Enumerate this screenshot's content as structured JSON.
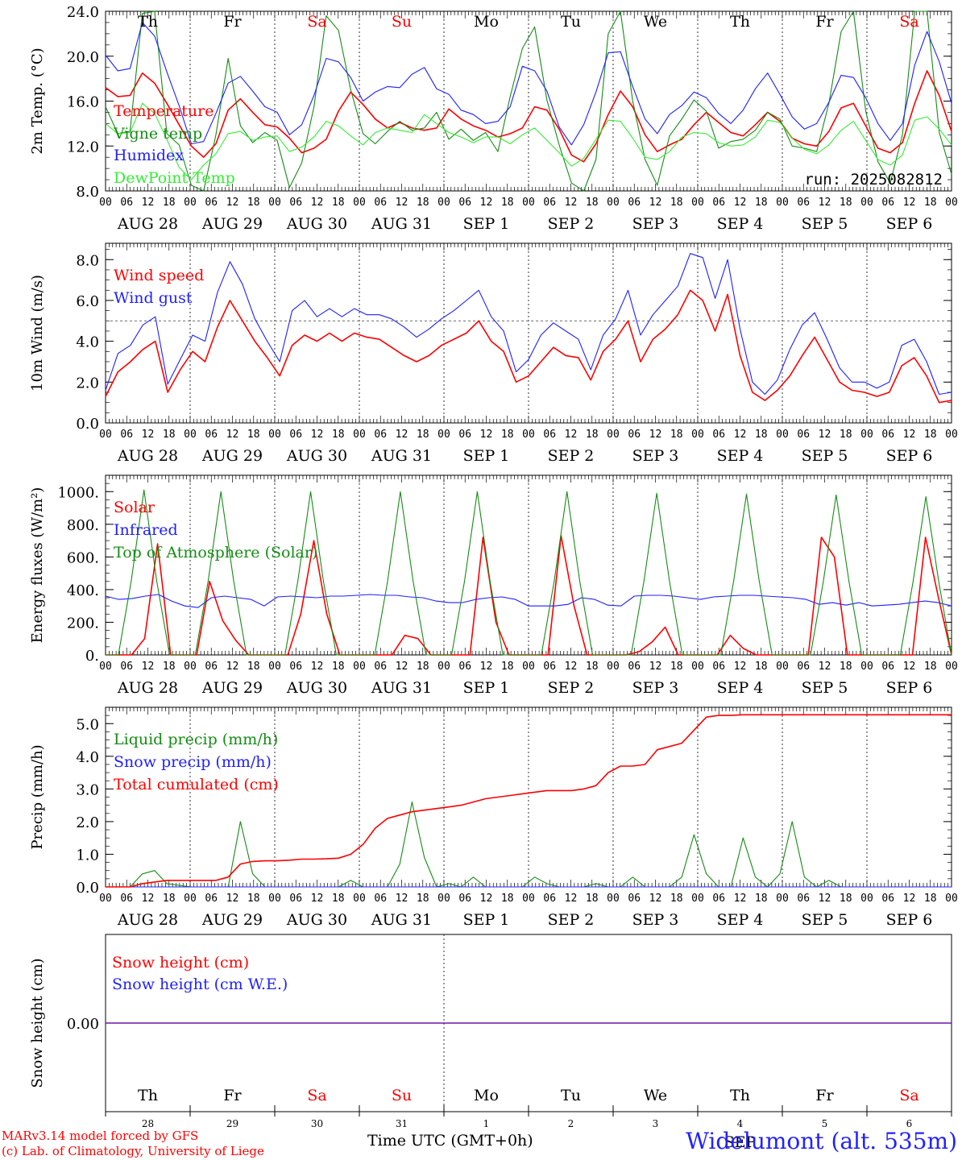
{
  "meteogram": {
    "run_label": "run: 2025082812",
    "station": "Widelumont (alt. 535m)",
    "footer_x_title": "Time UTC (GMT+0h)",
    "footer_month": "SEP",
    "credit_line_1": "MARv3.14 model forced by GFS",
    "credit_line_2": "(c) Lab. of Climatology, University of Liege",
    "weekdays": [
      "Th",
      "Fr",
      "Sa",
      "Su",
      "Mo",
      "Tu",
      "We",
      "Th",
      "Fr",
      "Sa"
    ],
    "weekday_weekend": [
      false,
      false,
      true,
      true,
      false,
      false,
      false,
      false,
      false,
      true
    ],
    "date_labels": [
      "AUG 28",
      "AUG 29",
      "AUG 30",
      "AUG 31",
      "SEP  1",
      "SEP  2",
      "SEP  3",
      "SEP  4",
      "SEP  5",
      "SEP  6"
    ],
    "day_numbers": [
      "28",
      "29",
      "30",
      "31",
      "1",
      "2",
      "3",
      "4",
      "5",
      "6"
    ],
    "hour_ticks": [
      "00",
      "06",
      "12",
      "18"
    ],
    "colors": {
      "red": "#ff0000",
      "blue": "#1f1fff",
      "green": "#148c14",
      "lightgreen": "#33ee33",
      "weekend": "#ff0000"
    }
  },
  "chart_data": [
    {
      "type": "line",
      "ylabel": "2m Temp. (°C)",
      "ylim": [
        8,
        24
      ],
      "yticks": [
        "8.0",
        "12.0",
        "16.0",
        "20.0",
        "24.0"
      ],
      "x_unit": "hours since 2025-08-28 00 UTC (3-hourly)",
      "series": [
        {
          "name": "Temperature",
          "color": "red",
          "values": [
            17.2,
            16.4,
            16.5,
            18.5,
            17.6,
            15.8,
            13.9,
            12.0,
            11.0,
            12.2,
            15.2,
            16.2,
            15.0,
            13.9,
            13.7,
            12.7,
            11.4,
            11.8,
            12.6,
            15.1,
            16.8,
            15.7,
            14.4,
            13.6,
            14.1,
            13.6,
            13.4,
            13.6,
            15.3,
            14.4,
            13.8,
            13.4,
            12.8,
            13.1,
            13.6,
            15.5,
            15.2,
            13.5,
            11.2,
            10.6,
            12.2,
            14.8,
            16.9,
            15.5,
            13.0,
            11.5,
            12.1,
            12.6,
            13.9,
            15.0,
            14.1,
            13.2,
            12.9,
            13.9,
            15.0,
            14.2,
            12.7,
            12.2,
            12.0,
            13.3,
            15.4,
            15.8,
            13.8,
            11.8,
            11.4,
            12.3,
            15.8,
            18.7,
            16.5,
            13.3
          ]
        },
        {
          "name": "Vigne temp",
          "color": "green",
          "values": [
            15.5,
            13.1,
            13.3,
            23.8,
            24.0,
            13.1,
            12.1,
            8.5,
            7.9,
            13.0,
            19.8,
            13.8,
            12.3,
            13.2,
            12.5,
            8.3,
            10.5,
            15.5,
            23.6,
            22.3,
            17.0,
            13.1,
            12.2,
            13.3,
            14.2,
            13.4,
            13.6,
            15.0,
            12.6,
            13.5,
            12.5,
            13.2,
            11.5,
            16.4,
            20.7,
            22.6,
            16.1,
            12.1,
            8.7,
            7.4,
            10.8,
            22.0,
            24.0,
            16.0,
            10.8,
            8.5,
            12.9,
            14.4,
            16.1,
            15.1,
            11.8,
            12.4,
            12.6,
            13.4,
            15.0,
            14.4,
            12.0,
            11.8,
            11.5,
            15.8,
            22.2,
            24.0,
            15.1,
            10.6,
            8.7,
            13.0,
            24.0,
            24.0,
            13.2,
            9.5
          ]
        },
        {
          "name": "Humidex",
          "color": "blue",
          "values": [
            20.1,
            18.7,
            18.9,
            23.0,
            21.8,
            18.6,
            15.6,
            12.2,
            12.4,
            14.9,
            17.6,
            18.2,
            16.9,
            15.5,
            15.0,
            13.0,
            13.9,
            16.5,
            19.8,
            19.5,
            18.1,
            16.0,
            16.8,
            17.3,
            17.2,
            18.4,
            19.0,
            17.1,
            16.6,
            15.2,
            14.8,
            14.0,
            14.2,
            15.5,
            19.1,
            18.7,
            16.9,
            13.7,
            12.1,
            13.9,
            16.8,
            20.3,
            20.4,
            17.3,
            14.4,
            13.1,
            14.8,
            15.6,
            16.8,
            16.3,
            14.9,
            14.0,
            15.2,
            17.1,
            18.5,
            16.6,
            14.6,
            13.5,
            14.0,
            15.9,
            18.3,
            18.1,
            16.3,
            14.0,
            12.5,
            14.0,
            19.2,
            22.2,
            19.5,
            15.8
          ]
        },
        {
          "name": "DewPoint Temp",
          "color": "lightgreen",
          "values": [
            14.0,
            13.1,
            13.2,
            15.8,
            14.9,
            12.6,
            10.1,
            9.0,
            10.3,
            11.3,
            13.1,
            13.3,
            12.5,
            12.8,
            12.9,
            11.5,
            11.9,
            12.8,
            14.2,
            13.8,
            12.9,
            12.1,
            13.2,
            13.6,
            13.4,
            13.2,
            14.8,
            14.0,
            13.2,
            12.8,
            12.3,
            12.8,
            12.8,
            12.2,
            13.0,
            13.6,
            12.5,
            11.4,
            10.2,
            10.9,
            12.6,
            14.3,
            14.2,
            12.7,
            11.0,
            10.8,
            11.5,
            12.8,
            13.2,
            13.1,
            12.3,
            12.0,
            12.1,
            12.8,
            14.3,
            14.1,
            12.7,
            11.7,
            11.3,
            12.1,
            13.4,
            14.2,
            12.5,
            10.8,
            10.3,
            11.2,
            14.3,
            14.6,
            13.5,
            12.1
          ]
        }
      ]
    },
    {
      "type": "line",
      "ylabel": "10m Wind (m/s)",
      "ylim": [
        0,
        8.8
      ],
      "yticks": [
        "0.0",
        "2.0",
        "4.0",
        "6.0",
        "8.0"
      ],
      "reference_line": 5.0,
      "series": [
        {
          "name": "Wind speed",
          "color": "red",
          "values": [
            1.3,
            2.5,
            3.0,
            3.6,
            4.0,
            1.5,
            2.6,
            3.5,
            3.0,
            4.7,
            6.0,
            5.0,
            4.0,
            3.2,
            2.3,
            3.8,
            4.3,
            4.0,
            4.4,
            4.0,
            4.4,
            4.2,
            4.1,
            3.7,
            3.3,
            3.0,
            3.3,
            3.8,
            4.1,
            4.4,
            5.0,
            4.0,
            3.5,
            2.0,
            2.3,
            3.0,
            3.7,
            3.3,
            3.2,
            2.1,
            3.5,
            4.1,
            5.0,
            3.0,
            4.1,
            4.6,
            5.3,
            6.5,
            6.0,
            4.5,
            6.3,
            3.3,
            1.5,
            1.1,
            1.6,
            2.3,
            3.3,
            4.2,
            3.1,
            2.0,
            1.6,
            1.5,
            1.3,
            1.5,
            2.8,
            3.2,
            2.3,
            1.0,
            1.1
          ]
        },
        {
          "name": "Wind gust",
          "color": "blue",
          "values": [
            1.6,
            3.4,
            3.8,
            4.8,
            5.2,
            1.9,
            3.1,
            4.3,
            4.0,
            6.4,
            7.9,
            6.8,
            5.1,
            4.0,
            3.0,
            5.5,
            6.0,
            5.2,
            5.6,
            5.2,
            5.6,
            5.3,
            5.3,
            5.1,
            4.7,
            4.2,
            4.6,
            5.1,
            5.5,
            6.0,
            6.5,
            5.2,
            4.5,
            2.5,
            3.1,
            4.3,
            4.9,
            4.5,
            4.1,
            2.6,
            4.3,
            5.1,
            6.5,
            4.3,
            5.3,
            6.0,
            6.7,
            8.3,
            8.1,
            6.1,
            8.0,
            4.6,
            2.0,
            1.4,
            2.1,
            3.6,
            4.8,
            5.4,
            4.1,
            2.7,
            2.0,
            2.0,
            1.7,
            2.0,
            3.8,
            4.1,
            3.0,
            1.4,
            1.5
          ]
        }
      ]
    },
    {
      "type": "line",
      "ylabel": "Energy fluxes (W/m²)",
      "ylim": [
        0,
        1100
      ],
      "yticks": [
        "0.",
        "200.",
        "400.",
        "600.",
        "800.",
        "1000."
      ],
      "series": [
        {
          "name": "Solar",
          "color": "red",
          "values": [
            0,
            0,
            0,
            100,
            680,
            0,
            0,
            0,
            450,
            210,
            90,
            0,
            0,
            0,
            0,
            250,
            700,
            250,
            0,
            0,
            0,
            0,
            0,
            120,
            100,
            0,
            0,
            0,
            0,
            720,
            200,
            0,
            0,
            0,
            0,
            730,
            300,
            0,
            0,
            0,
            0,
            20,
            80,
            170,
            0,
            0,
            0,
            0,
            120,
            40,
            0,
            0,
            0,
            0,
            0,
            720,
            600,
            0,
            0,
            0,
            0,
            0,
            0,
            720,
            350,
            0
          ]
        },
        {
          "name": "Infrared",
          "color": "blue",
          "values": [
            360,
            340,
            345,
            360,
            370,
            330,
            300,
            290,
            350,
            360,
            350,
            340,
            300,
            355,
            360,
            355,
            350,
            360,
            360,
            365,
            370,
            365,
            365,
            355,
            350,
            330,
            320,
            320,
            340,
            350,
            355,
            340,
            300,
            300,
            300,
            310,
            350,
            340,
            305,
            300,
            360,
            365,
            365,
            360,
            350,
            340,
            355,
            360,
            365,
            365,
            360,
            355,
            350,
            340,
            310,
            320,
            305,
            320,
            300,
            305,
            310,
            320,
            330,
            320,
            300
          ]
        },
        {
          "name": "Top of Atmosphere (Solar)",
          "color": "green",
          "values": [
            0,
            0,
            450,
            1010,
            450,
            0,
            0,
            0,
            450,
            1000,
            450,
            0,
            0,
            0,
            0,
            450,
            1000,
            450,
            0,
            0,
            0,
            0,
            450,
            1000,
            450,
            0,
            0,
            0,
            450,
            1000,
            450,
            0,
            0,
            0,
            0,
            450,
            1000,
            450,
            0,
            0,
            0,
            0,
            450,
            990,
            450,
            0,
            0,
            0,
            0,
            450,
            985,
            450,
            0,
            0,
            0,
            0,
            450,
            980,
            450,
            0,
            0,
            0,
            0,
            450,
            970,
            450,
            0
          ]
        }
      ]
    },
    {
      "type": "line",
      "ylabel": "Precip (mm/h)",
      "ylim": [
        0,
        5.5
      ],
      "yticks": [
        "0.0",
        "1.0",
        "2.0",
        "3.0",
        "4.0",
        "5.0"
      ],
      "series": [
        {
          "name": "Liquid precip (mm/h)",
          "color": "green",
          "values": [
            0,
            0,
            0,
            0.4,
            0.5,
            0.1,
            0.05,
            0,
            0,
            0,
            0,
            2.0,
            0.4,
            0,
            0,
            0,
            0,
            0,
            0,
            0,
            0.2,
            0,
            0,
            0,
            0.7,
            2.6,
            0.9,
            0,
            0.1,
            0,
            0.3,
            0,
            0,
            0,
            0,
            0.3,
            0.1,
            0,
            0,
            0,
            0.1,
            0,
            0,
            0.3,
            0,
            0,
            0,
            0.3,
            1.6,
            0.4,
            0,
            0,
            1.5,
            0.3,
            0,
            0.4,
            2.0,
            0.3,
            0,
            0.2,
            0,
            0,
            0,
            0,
            0,
            0,
            0,
            0,
            0,
            0
          ]
        },
        {
          "name": "Snow precip (mm/h)",
          "color": "blue",
          "values": [
            0,
            0,
            0,
            0,
            0,
            0,
            0,
            0,
            0,
            0,
            0,
            0,
            0,
            0,
            0,
            0,
            0,
            0,
            0,
            0,
            0,
            0,
            0,
            0,
            0,
            0,
            0,
            0,
            0,
            0,
            0,
            0,
            0,
            0,
            0,
            0,
            0,
            0,
            0,
            0,
            0,
            0,
            0,
            0,
            0,
            0,
            0,
            0,
            0,
            0,
            0,
            0,
            0,
            0,
            0,
            0,
            0,
            0,
            0,
            0,
            0,
            0,
            0,
            0,
            0,
            0,
            0,
            0,
            0,
            0
          ]
        },
        {
          "name": "Total cumulated (cm)",
          "color": "red",
          "values": [
            0,
            0,
            0,
            0.1,
            0.15,
            0.2,
            0.2,
            0.2,
            0.2,
            0.2,
            0.3,
            0.7,
            0.78,
            0.8,
            0.8,
            0.82,
            0.85,
            0.85,
            0.86,
            0.88,
            1.0,
            1.3,
            1.8,
            2.1,
            2.2,
            2.3,
            2.35,
            2.4,
            2.45,
            2.5,
            2.6,
            2.7,
            2.75,
            2.8,
            2.85,
            2.9,
            2.95,
            2.95,
            2.95,
            3.0,
            3.1,
            3.5,
            3.7,
            3.7,
            3.75,
            4.2,
            4.3,
            4.4,
            4.8,
            5.2,
            5.25,
            5.25,
            5.27,
            5.27,
            5.27,
            5.27,
            5.27,
            5.27,
            5.27,
            5.27,
            5.27,
            5.27,
            5.27,
            5.27,
            5.27,
            5.27,
            5.27,
            5.27,
            5.27,
            5.27
          ]
        }
      ]
    },
    {
      "type": "line",
      "ylabel": "Snow height (cm)",
      "yticks": [
        "0.00"
      ],
      "series": [
        {
          "name": "Snow height (cm)",
          "color": "red",
          "values": [
            0,
            0
          ]
        },
        {
          "name": "Snow height (cm W.E.)",
          "color": "blue",
          "values": [
            0,
            0
          ]
        }
      ]
    }
  ]
}
